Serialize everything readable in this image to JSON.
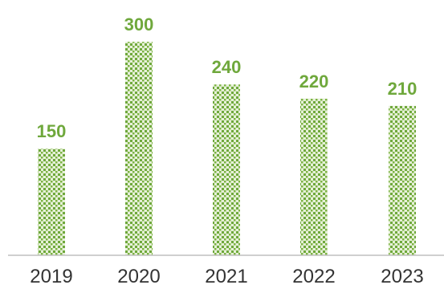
{
  "chart_data": {
    "type": "bar",
    "title": "",
    "xlabel": "",
    "ylabel": "",
    "categories": [
      "2019",
      "2020",
      "2021",
      "2022",
      "2023"
    ],
    "values": [
      150,
      300,
      240,
      220,
      210
    ],
    "data_labels": [
      "150",
      "300",
      "240",
      "220",
      "210"
    ],
    "ylim": [
      0,
      300
    ],
    "grid": false,
    "legend": "none",
    "colors": {
      "bar_fill_dots": "#6fa83c",
      "bar_fill_light": "#e6f0d8",
      "data_label": "#6fa83c",
      "axis": "#bfbfbf",
      "tick_label": "#333333"
    }
  }
}
